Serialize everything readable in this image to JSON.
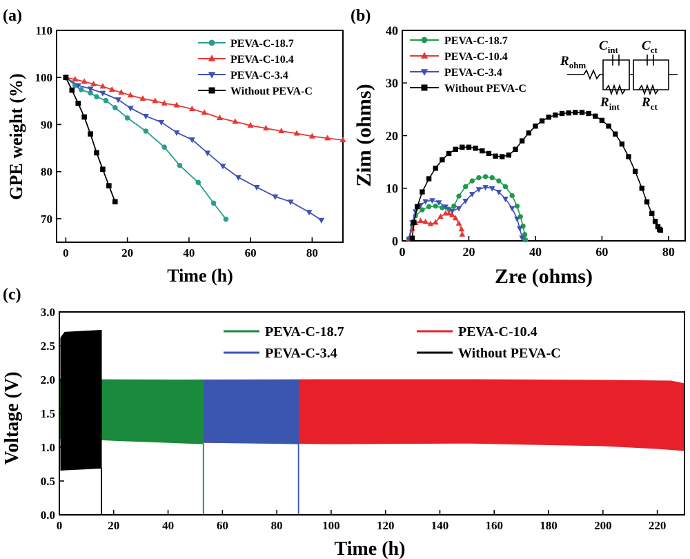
{
  "chart_data": [
    {
      "panel": "(a)",
      "type": "line",
      "xlabel": "Time (h)",
      "ylabel": "GPE weight (%)",
      "xlim": [
        -3,
        90
      ],
      "ylim": [
        65,
        110
      ],
      "xticks": [
        0,
        20,
        40,
        60,
        80
      ],
      "yticks": [
        70,
        80,
        90,
        100,
        110
      ],
      "legend_position": "top-right",
      "series": [
        {
          "name": "PEVA-C-18.7",
          "color": "#2a9d8f",
          "marker": "circle",
          "x": [
            0,
            3,
            5,
            8,
            10,
            13,
            16,
            20,
            26,
            32,
            37,
            43,
            48,
            52
          ],
          "y": [
            100,
            98.3,
            97.4,
            96.7,
            95.9,
            95.1,
            93.6,
            91.4,
            88.6,
            85.2,
            81.3,
            77.7,
            73.3,
            69.9
          ]
        },
        {
          "name": "PEVA-C-10.4",
          "color": "#e53935",
          "marker": "triangle-up",
          "x": [
            0,
            3,
            6,
            9,
            12,
            15,
            18,
            21,
            25,
            29,
            32,
            36,
            41,
            45,
            50,
            55,
            60,
            65,
            70,
            75,
            80,
            85,
            90
          ],
          "y": [
            100,
            99.6,
            99.1,
            98.6,
            98.1,
            97.4,
            96.8,
            96.2,
            95.5,
            95,
            94.5,
            94.1,
            93.3,
            92.5,
            91.4,
            90.6,
            89.8,
            89.2,
            88.6,
            88.1,
            87.5,
            87.1,
            86.7
          ]
        },
        {
          "name": "PEVA-C-3.4",
          "color": "#3f51b5",
          "marker": "triangle-down",
          "x": [
            0,
            4,
            8,
            12,
            17,
            21,
            26,
            31,
            36,
            41,
            46,
            51,
            56,
            62,
            68,
            73,
            79,
            83
          ],
          "y": [
            100,
            98.3,
            97.6,
            96.7,
            95.3,
            93.5,
            91.8,
            90.5,
            88.3,
            86.8,
            84,
            81.2,
            78.8,
            76.7,
            74.7,
            73.6,
            71.4,
            69.7
          ]
        },
        {
          "name": "Without PEVA-C",
          "color": "#000000",
          "marker": "square",
          "x": [
            0,
            2,
            4,
            6,
            8,
            10,
            12,
            14,
            16
          ],
          "y": [
            100,
            97.3,
            94.5,
            91.6,
            88,
            84,
            80.5,
            77,
            73.6
          ]
        }
      ]
    },
    {
      "panel": "(b)",
      "type": "scatter",
      "xlabel": "Zre (ohms)",
      "ylabel": "Zim (ohms)",
      "xlim": [
        0,
        85
      ],
      "ylim": [
        0,
        40
      ],
      "xticks": [
        0,
        20,
        40,
        60,
        80
      ],
      "yticks": [
        0,
        10,
        20,
        30,
        40
      ],
      "legend_position": "top-left",
      "circuit_labels": [
        "R",
        "ohm",
        "C",
        "int",
        "C",
        "ct",
        "R",
        "int",
        "R",
        "ct"
      ],
      "series": [
        {
          "name": "PEVA-C-18.7",
          "color": "#1f9a4a",
          "marker": "circle",
          "x": [
            2,
            3,
            4,
            6,
            8,
            10,
            12,
            14,
            15.5,
            17,
            19,
            21,
            23,
            25,
            27,
            29,
            31,
            33,
            34.5,
            35.5,
            36.3,
            36.8,
            37
          ],
          "y": [
            0.4,
            3,
            4.8,
            5.9,
            6.5,
            6.6,
            6.3,
            6,
            6.6,
            8.5,
            10.3,
            11.4,
            12,
            12.2,
            12,
            11.4,
            10.3,
            8.6,
            6.6,
            4.6,
            2.8,
            1.2,
            0.2
          ]
        },
        {
          "name": "PEVA-C-10.4",
          "color": "#e53935",
          "marker": "triangle-up",
          "x": [
            2,
            3,
            4,
            5.5,
            7,
            8.5,
            10,
            11.5,
            13,
            14,
            15,
            16,
            17,
            17.8,
            18
          ],
          "y": [
            0.4,
            2.3,
            3.4,
            3.8,
            3.6,
            3.2,
            3.5,
            4.6,
            5.2,
            5.2,
            4.9,
            4.3,
            3.3,
            2.2,
            1.2
          ]
        },
        {
          "name": "PEVA-C-3.4",
          "color": "#3f51b5",
          "marker": "triangle-down",
          "x": [
            2,
            3,
            4,
            5.5,
            7,
            9,
            11,
            13,
            15,
            17,
            19,
            21,
            23,
            25,
            27,
            29,
            31,
            33,
            34.5,
            35.3,
            36
          ],
          "y": [
            0.4,
            3.5,
            5.6,
            6.8,
            7.5,
            7.7,
            7.3,
            6.5,
            5.7,
            6.2,
            7.6,
            8.9,
            9.8,
            10.2,
            10,
            9.3,
            8,
            6.2,
            4.2,
            2.4,
            0.6
          ]
        },
        {
          "name": "Without PEVA-C",
          "color": "#000000",
          "marker": "square",
          "x": [
            3,
            3.5,
            4.5,
            6,
            8,
            10,
            12,
            14,
            16,
            18,
            20,
            22,
            24,
            26,
            28,
            30,
            32,
            34,
            36,
            38,
            40,
            42,
            44,
            46,
            48,
            50,
            52,
            54,
            56,
            58,
            60,
            62,
            64,
            66,
            68,
            70,
            72,
            73.5,
            75,
            76,
            76.8,
            77.3,
            77.6
          ],
          "y": [
            0.5,
            3.5,
            6.5,
            9.3,
            11.8,
            13.8,
            15.4,
            16.6,
            17.4,
            17.8,
            17.8,
            17.6,
            17.1,
            16.6,
            16.1,
            16,
            16.3,
            17.4,
            19,
            20.5,
            21.8,
            22.8,
            23.5,
            23.9,
            24.2,
            24.3,
            24.4,
            24.4,
            24.2,
            23.7,
            22.9,
            21.8,
            20.3,
            18.4,
            16,
            13.2,
            10,
            7.4,
            5.2,
            3.7,
            2.7,
            2.2,
            2.0
          ]
        }
      ]
    },
    {
      "panel": "(c)",
      "type": "area",
      "xlabel": "Time (h)",
      "ylabel": "Voltage (V)",
      "xlim": [
        0,
        230
      ],
      "ylim": [
        0,
        3.0
      ],
      "xticks": [
        0,
        20,
        40,
        60,
        80,
        100,
        120,
        140,
        160,
        180,
        200,
        220
      ],
      "yticks": [
        0.0,
        0.5,
        1.0,
        1.5,
        2.0,
        2.5,
        3.0
      ],
      "legend_position": "top",
      "note": "galvanostatic charge/discharge envelopes: upper and lower voltage bounds vs time",
      "series": [
        {
          "name": "PEVA-C-10.4",
          "color": "#e8202a",
          "x_start": 0,
          "x_end": 230,
          "upper": [
            [
              0,
              1.99
            ],
            [
              100,
              2.0
            ],
            [
              150,
              2.0
            ],
            [
              200,
              1.99
            ],
            [
              225,
              1.98
            ],
            [
              230,
              1.94
            ]
          ],
          "lower": [
            [
              0,
              1.13
            ],
            [
              50,
              1.07
            ],
            [
              100,
              1.05
            ],
            [
              150,
              1.06
            ],
            [
              200,
              1.02
            ],
            [
              220,
              0.98
            ],
            [
              230,
              0.95
            ]
          ]
        },
        {
          "name": "PEVA-C-3.4",
          "color": "#3a56b0",
          "x_start": 0,
          "x_end": 88,
          "drop_to": 0,
          "upper": [
            [
              0,
              2.0
            ],
            [
              88,
              1.99
            ]
          ],
          "lower": [
            [
              0,
              1.13
            ],
            [
              40,
              1.08
            ],
            [
              88,
              1.05
            ]
          ]
        },
        {
          "name": "PEVA-C-18.7",
          "color": "#1a8a3c",
          "x_start": 0,
          "x_end": 53,
          "drop_to": 0,
          "upper": [
            [
              0,
              2.0
            ],
            [
              53,
              1.99
            ]
          ],
          "lower": [
            [
              0,
              1.14
            ],
            [
              20,
              1.1
            ],
            [
              53,
              1.05
            ]
          ]
        },
        {
          "name": "Without PEVA-C",
          "color": "#000000",
          "x_start": 0.5,
          "x_end": 15.5,
          "drop_to": 0,
          "upper": [
            [
              0.5,
              2.62
            ],
            [
              2,
              2.7
            ],
            [
              15.5,
              2.73
            ]
          ],
          "lower": [
            [
              0.5,
              0.66
            ],
            [
              15.5,
              0.69
            ]
          ]
        }
      ]
    }
  ]
}
